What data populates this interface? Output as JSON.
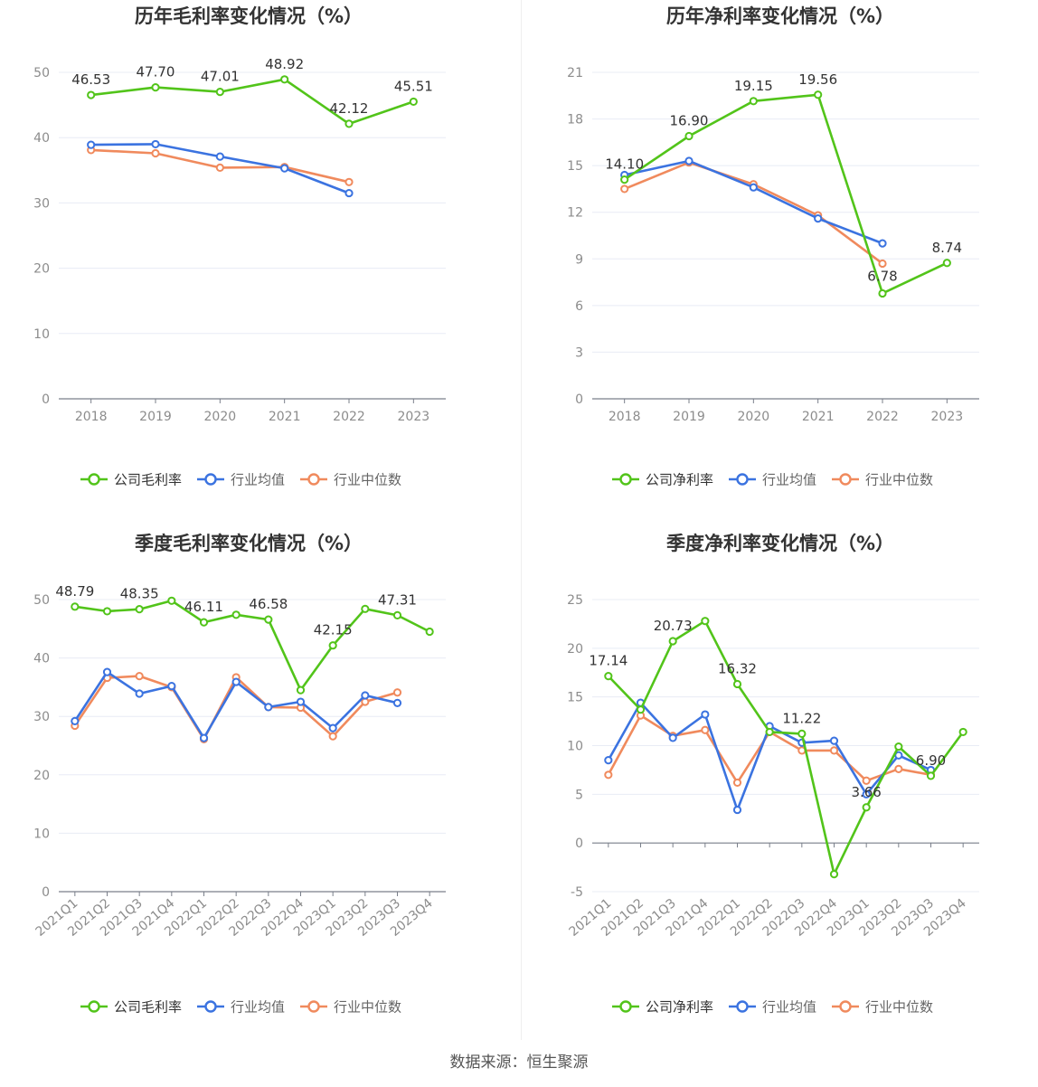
{
  "source_text": "数据来源：恒生聚源",
  "colors": {
    "company": "#52c41a",
    "industry_avg": "#3b73e0",
    "industry_median": "#f08a5d",
    "grid": "#e8ecf5",
    "axis_text": "#8c8c8c",
    "title": "#333333",
    "label": "#333333"
  },
  "chart_data": [
    {
      "type": "line",
      "title": "历年毛利率变化情况（%）",
      "categories": [
        "2018",
        "2019",
        "2020",
        "2021",
        "2022",
        "2023"
      ],
      "ylim": [
        0,
        50
      ],
      "yticks": [
        0,
        10,
        20,
        30,
        40,
        50
      ],
      "grid": true,
      "legend": "bottom",
      "series": [
        {
          "name": "公司毛利率",
          "values": [
            46.53,
            47.7,
            47.01,
            48.92,
            42.12,
            45.51
          ],
          "labels": [
            "46.53",
            "47.70",
            "47.01",
            "48.92",
            "42.12",
            "45.51"
          ]
        },
        {
          "name": "行业均值",
          "values": [
            38.9,
            39.0,
            37.1,
            35.3,
            31.5,
            null
          ]
        },
        {
          "name": "行业中位数",
          "values": [
            38.1,
            37.6,
            35.4,
            35.5,
            33.2,
            null
          ]
        }
      ]
    },
    {
      "type": "line",
      "title": "历年净利率变化情况（%）",
      "categories": [
        "2018",
        "2019",
        "2020",
        "2021",
        "2022",
        "2023"
      ],
      "ylim": [
        0,
        21
      ],
      "yticks": [
        0,
        3,
        6,
        9,
        12,
        15,
        18,
        21
      ],
      "grid": true,
      "legend": "bottom",
      "series": [
        {
          "name": "公司净利率",
          "values": [
            14.1,
            16.9,
            19.15,
            19.56,
            6.78,
            8.74
          ],
          "labels": [
            "14.10",
            "16.90",
            "19.15",
            "19.56",
            "6.78",
            "8.74"
          ]
        },
        {
          "name": "行业均值",
          "values": [
            14.4,
            15.3,
            13.6,
            11.6,
            10.0,
            null
          ]
        },
        {
          "name": "行业中位数",
          "values": [
            13.5,
            15.2,
            13.8,
            11.8,
            8.7,
            null
          ]
        }
      ]
    },
    {
      "type": "line",
      "title": "季度毛利率变化情况（%）",
      "categories": [
        "2021Q1",
        "2021Q2",
        "2021Q3",
        "2021Q4",
        "2022Q1",
        "2022Q2",
        "2022Q3",
        "2022Q4",
        "2023Q1",
        "2023Q2",
        "2023Q3",
        "2023Q4"
      ],
      "ylim": [
        0,
        50
      ],
      "yticks": [
        0,
        10,
        20,
        30,
        40,
        50
      ],
      "grid": true,
      "legend": "bottom",
      "rotate_x_labels": true,
      "series": [
        {
          "name": "公司毛利率",
          "values": [
            48.79,
            48.0,
            48.35,
            49.8,
            46.11,
            47.4,
            46.58,
            34.5,
            42.15,
            48.4,
            47.31,
            44.5
          ],
          "labels": [
            "48.79",
            "",
            "48.35",
            "",
            "46.11",
            "",
            "46.58",
            "",
            "42.15",
            "",
            "47.31",
            ""
          ]
        },
        {
          "name": "行业均值",
          "values": [
            29.2,
            37.6,
            33.9,
            35.2,
            26.3,
            35.9,
            31.6,
            32.5,
            28.0,
            33.6,
            32.3,
            null
          ]
        },
        {
          "name": "行业中位数",
          "values": [
            28.4,
            36.6,
            36.9,
            35.0,
            26.1,
            36.7,
            31.6,
            31.5,
            26.6,
            32.5,
            34.1,
            null
          ]
        }
      ]
    },
    {
      "type": "line",
      "title": "季度净利率变化情况（%）",
      "categories": [
        "2021Q1",
        "2021Q2",
        "2021Q3",
        "2021Q4",
        "2022Q1",
        "2022Q2",
        "2022Q3",
        "2022Q4",
        "2023Q1",
        "2023Q2",
        "2023Q3",
        "2023Q4"
      ],
      "ylim": [
        -5,
        25
      ],
      "yticks": [
        -5,
        0,
        5,
        10,
        15,
        20,
        25
      ],
      "grid": true,
      "legend": "bottom",
      "rotate_x_labels": true,
      "series": [
        {
          "name": "公司净利率",
          "values": [
            17.14,
            13.7,
            20.73,
            22.8,
            16.32,
            11.4,
            11.22,
            -3.2,
            3.66,
            9.9,
            6.9,
            11.4
          ],
          "labels": [
            "17.14",
            "",
            "20.73",
            "",
            "16.32",
            "",
            "11.22",
            "",
            "3.66",
            "",
            "6.90",
            ""
          ]
        },
        {
          "name": "行业均值",
          "values": [
            8.5,
            14.4,
            10.8,
            13.2,
            3.4,
            12.0,
            10.3,
            10.5,
            5.0,
            9.0,
            7.5,
            null
          ]
        },
        {
          "name": "行业中位数",
          "values": [
            7.0,
            13.1,
            11.0,
            11.6,
            6.2,
            11.4,
            9.5,
            9.5,
            6.4,
            7.6,
            7.0,
            null
          ]
        }
      ]
    }
  ]
}
